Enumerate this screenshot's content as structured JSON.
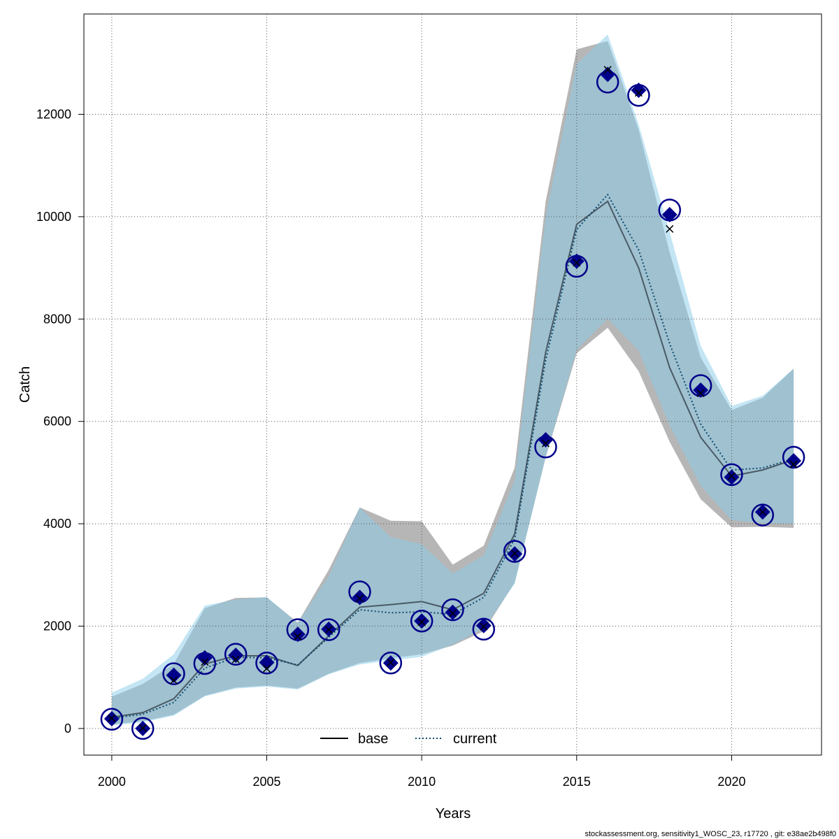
{
  "chart_data": {
    "type": "line",
    "xlabel": "Years",
    "ylabel": "Catch",
    "xlim": [
      1999.1,
      2022.9
    ],
    "ylim": [
      -520,
      13960
    ],
    "x_ticks": [
      2000,
      2005,
      2010,
      2015,
      2020
    ],
    "y_ticks": [
      0,
      2000,
      4000,
      6000,
      8000,
      10000,
      12000
    ],
    "grid": true,
    "legend_position": "bottom-center",
    "x": [
      2000,
      2001,
      2002,
      2003,
      2004,
      2005,
      2006,
      2007,
      2008,
      2009,
      2010,
      2011,
      2012,
      2013,
      2014,
      2015,
      2016,
      2017,
      2018,
      2019,
      2020,
      2021,
      2022
    ],
    "series": [
      {
        "name": "base",
        "line_style": "solid",
        "line_color": "#4a5a66",
        "band_color": "#9e9e9e",
        "values": [
          220,
          310,
          580,
          1260,
          1420,
          1420,
          1230,
          1810,
          2370,
          2420,
          2480,
          2320,
          2640,
          3800,
          7350,
          9850,
          10300,
          9000,
          7050,
          5690,
          4930,
          5050,
          5250
        ],
        "lower": [
          80,
          140,
          270,
          640,
          800,
          840,
          780,
          1070,
          1280,
          1370,
          1450,
          1620,
          1900,
          2850,
          5300,
          7330,
          7830,
          6980,
          5600,
          4480,
          3930,
          3940,
          3920
        ],
        "upper": [
          620,
          870,
          1260,
          2350,
          2550,
          2560,
          2070,
          3100,
          4320,
          4060,
          4050,
          3200,
          3570,
          5100,
          10300,
          13270,
          13430,
          11700,
          9300,
          7250,
          6220,
          6460,
          7030
        ],
        "observed": [
          190,
          0,
          1040,
          1380,
          1430,
          1290,
          1840,
          1940,
          2560,
          1280,
          2100,
          2270,
          2010,
          3410,
          5640,
          9130,
          12780,
          12470,
          10040,
          6610,
          4910,
          4230,
          5230
        ],
        "expected": [
          200,
          10,
          940,
          1300,
          1350,
          1170,
          1800,
          1930,
          2540,
          1290,
          2080,
          2250,
          1990,
          3420,
          5570,
          9100,
          12870,
          12420,
          9760,
          6550,
          4930,
          4230,
          5160
        ]
      },
      {
        "name": "current",
        "line_style": "dotted",
        "line_color": "#0e4b6e",
        "band_color": "#87cbea",
        "values": [
          200,
          280,
          510,
          1180,
          1390,
          1380,
          1240,
          1780,
          2320,
          2260,
          2280,
          2230,
          2560,
          3710,
          7200,
          9750,
          10430,
          9350,
          7520,
          5950,
          5050,
          5090,
          5270
        ],
        "lower": [
          60,
          120,
          250,
          630,
          780,
          820,
          760,
          1060,
          1250,
          1330,
          1400,
          1640,
          1950,
          2830,
          5300,
          7400,
          8010,
          7380,
          5920,
          4740,
          4070,
          4010,
          4000
        ],
        "upper": [
          700,
          970,
          1450,
          2400,
          2520,
          2570,
          2060,
          2980,
          4320,
          3740,
          3600,
          3030,
          3380,
          4850,
          10000,
          12980,
          13560,
          11800,
          9700,
          7480,
          6300,
          6500,
          7030
        ],
        "observed": [
          180,
          0,
          1070,
          1270,
          1450,
          1280,
          1930,
          1930,
          2670,
          1280,
          2100,
          2320,
          1940,
          3460,
          5500,
          9030,
          12630,
          12370,
          10130,
          6700,
          4960,
          4170,
          5300
        ]
      }
    ],
    "point_color": "#00008b"
  },
  "footer": "stockassessment.org, sensitivity1_WOSC_23, r17720 , git: e38ae2b498f0"
}
